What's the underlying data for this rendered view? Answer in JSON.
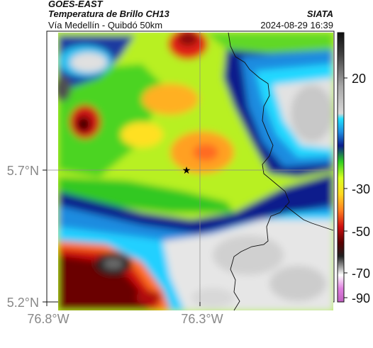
{
  "header": {
    "satellite": "GOES-EAST",
    "product": "Temperatura de Brillo CH13",
    "route": "Vía Medellín - Quibdó 50km",
    "agency": "SIATA",
    "datetime": "2024-08-29 16:39"
  },
  "map": {
    "y_ticks": [
      "5.7°N",
      "5.2°N"
    ],
    "x_ticks": [
      "76.8°W",
      "76.3°W"
    ],
    "marker": "star-marker"
  },
  "colorbar": {
    "ticks": [
      "20",
      "-30",
      "-50",
      "-70",
      "-90"
    ]
  },
  "colors": {
    "border": "#111111",
    "grid": "#888888"
  }
}
